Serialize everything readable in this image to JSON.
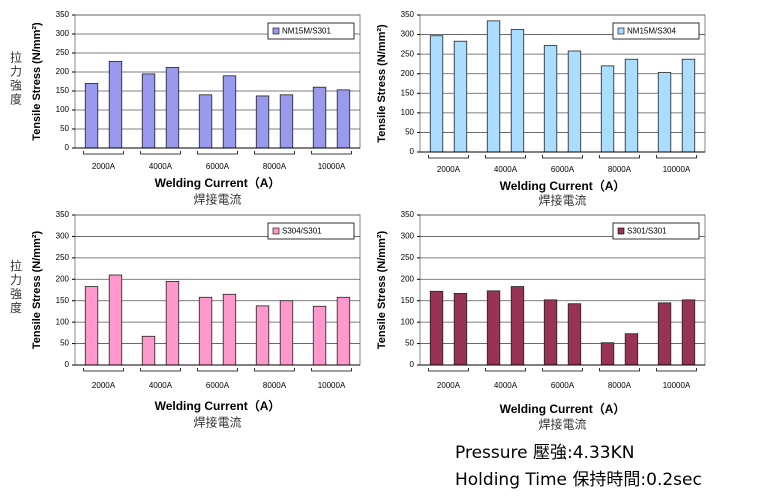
{
  "chart_data": [
    {
      "type": "bar",
      "legend": "NM15M/S301",
      "color": "#9999ee",
      "ylabel": "Tensile Stress (N/mm²)",
      "ylabel_cn": "拉力強度",
      "xlabel": "Welding Current（A）",
      "xlabel_cn": "焊接電流",
      "groups": [
        "2000A",
        "4000A",
        "6000A",
        "8000A",
        "10000A"
      ],
      "values": [
        170,
        228,
        195,
        212,
        140,
        190,
        137,
        140,
        160,
        153
      ],
      "ylim": [
        0,
        350
      ],
      "yticks": [
        0,
        50,
        100,
        150,
        200,
        250,
        300,
        350
      ],
      "grid": true
    },
    {
      "type": "bar",
      "legend": "NM15M/S304",
      "color": "#aaddff",
      "ylabel": "Tensile Stress (N/mm²)",
      "xlabel": "Welding Current（A）",
      "xlabel_cn": "焊接電流",
      "groups": [
        "2000A",
        "4000A",
        "6000A",
        "8000A",
        "10000A"
      ],
      "values": [
        297,
        283,
        335,
        313,
        272,
        258,
        220,
        237,
        203,
        237
      ],
      "ylim": [
        0,
        350
      ],
      "yticks": [
        0,
        50,
        100,
        150,
        200,
        250,
        300,
        350
      ],
      "grid": true
    },
    {
      "type": "bar",
      "legend": "S304/S301",
      "color": "#ff99cc",
      "ylabel": "Tensile Stress (N/mm²)",
      "ylabel_cn": "拉力強度",
      "xlabel": "Welding Current（A）",
      "xlabel_cn": "焊接電流",
      "groups": [
        "2000A",
        "4000A",
        "6000A",
        "8000A",
        "10000A"
      ],
      "values": [
        183,
        210,
        67,
        195,
        158,
        165,
        138,
        150,
        137,
        158
      ],
      "ylim": [
        0,
        350
      ],
      "yticks": [
        0,
        50,
        100,
        150,
        200,
        250,
        300,
        350
      ],
      "grid": true
    },
    {
      "type": "bar",
      "legend": "S301/S301",
      "color": "#993355",
      "ylabel": "Tensile Stress (N/mm²)",
      "xlabel": "Welding Current（A）",
      "xlabel_cn": "焊接電流",
      "groups": [
        "2000A",
        "4000A",
        "6000A",
        "8000A",
        "10000A"
      ],
      "values": [
        172,
        167,
        173,
        183,
        152,
        143,
        52,
        73,
        145,
        152
      ],
      "ylim": [
        0,
        350
      ],
      "yticks": [
        0,
        50,
        100,
        150,
        200,
        250,
        300,
        350
      ],
      "grid": true
    }
  ],
  "footer": [
    "Pressure 壓強:4.33KN",
    "Holding Time 保持時間:0.2sec"
  ]
}
